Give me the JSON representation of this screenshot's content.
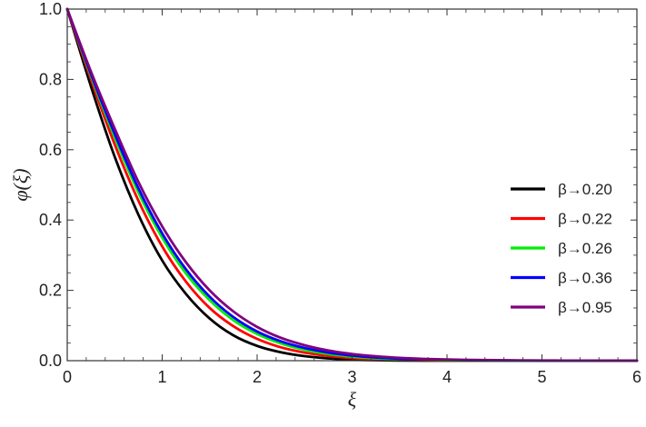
{
  "chart_data": {
    "type": "line",
    "xlabel": "ξ",
    "ylabel": "φ(ξ)",
    "xlim": [
      0,
      6
    ],
    "ylim": [
      0,
      1
    ],
    "xticks": [
      0,
      1,
      2,
      3,
      4,
      5,
      6
    ],
    "yticks": [
      0.0,
      0.2,
      0.4,
      0.6,
      0.8,
      1.0
    ],
    "xtick_labels": [
      "0",
      "1",
      "2",
      "3",
      "4",
      "5",
      "6"
    ],
    "ytick_labels": [
      "0.0",
      "0.2",
      "0.4",
      "0.6",
      "0.8",
      "1.0"
    ],
    "grid": false,
    "legend_position": "right",
    "x": [
      0,
      0.25,
      0.5,
      0.75,
      1,
      1.25,
      1.5,
      1.75,
      2,
      2.25,
      2.5,
      2.75,
      3,
      3.25,
      3.5,
      3.75,
      4,
      4.25,
      4.5,
      4.75,
      5,
      5.25,
      5.5,
      5.75,
      6
    ],
    "series": [
      {
        "name": "β→0.20",
        "color": "#000000",
        "values": [
          1.0,
          0.78,
          0.58,
          0.415,
          0.285,
          0.19,
          0.12,
          0.072,
          0.042,
          0.024,
          0.013,
          0.0065,
          0.003,
          0.0013,
          0.0005,
          0.0002,
          0.0001,
          0,
          0,
          0,
          0,
          0,
          0,
          0,
          0
        ]
      },
      {
        "name": "β→0.22",
        "color": "#ff0000",
        "values": [
          1.0,
          0.8,
          0.615,
          0.455,
          0.325,
          0.225,
          0.15,
          0.098,
          0.062,
          0.038,
          0.023,
          0.0135,
          0.0075,
          0.004,
          0.002,
          0.001,
          0.0005,
          0.0002,
          0.0001,
          0,
          0,
          0,
          0,
          0,
          0
        ]
      },
      {
        "name": "β→0.26",
        "color": "#00ee00",
        "values": [
          1.0,
          0.81,
          0.635,
          0.478,
          0.35,
          0.248,
          0.172,
          0.115,
          0.076,
          0.049,
          0.031,
          0.019,
          0.0115,
          0.0068,
          0.0039,
          0.0022,
          0.0012,
          0.0006,
          0.0003,
          0.00015,
          0.0001,
          0,
          0,
          0,
          0
        ]
      },
      {
        "name": "β→0.36",
        "color": "#0000ff",
        "values": [
          1.0,
          0.815,
          0.645,
          0.49,
          0.362,
          0.26,
          0.182,
          0.124,
          0.083,
          0.055,
          0.036,
          0.023,
          0.0145,
          0.009,
          0.0055,
          0.0033,
          0.002,
          0.0012,
          0.0007,
          0.0004,
          0.0002,
          0.0001,
          0,
          0,
          0
        ]
      },
      {
        "name": "β→0.95",
        "color": "#800080",
        "values": [
          1.0,
          0.822,
          0.66,
          0.508,
          0.382,
          0.28,
          0.2,
          0.14,
          0.096,
          0.065,
          0.044,
          0.029,
          0.019,
          0.0125,
          0.008,
          0.0052,
          0.0034,
          0.0022,
          0.0014,
          0.0009,
          0.0006,
          0.0004,
          0.00025,
          0.00015,
          0.0001
        ]
      }
    ]
  }
}
